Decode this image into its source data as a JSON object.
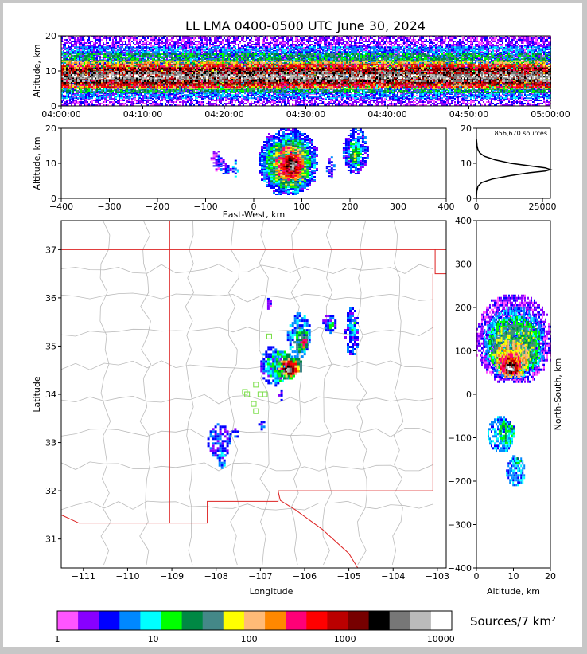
{
  "title": "LL LMA 0400-0500 UTC June 30, 2024",
  "colors": {
    "colorbar": [
      "#ff55ff",
      "#8800ff",
      "#0000ff",
      "#0088ff",
      "#00ffff",
      "#00ff00",
      "#008844",
      "#448888",
      "#ffff00",
      "#ffbb77",
      "#ff8800",
      "#ff0077",
      "#ff0000",
      "#bb0000",
      "#770000",
      "#000000",
      "#777777",
      "#bbbbbb",
      "#ffffff"
    ],
    "state_border": "#dd2222",
    "county_lines": "#bbbbbb",
    "grid": "#dddddd",
    "profile_line": "#000000",
    "site_markers": "#77dd44"
  },
  "chart_data": [
    {
      "id": "time_height",
      "type": "scatter",
      "xlabel": "",
      "ylabel": "Altitude, km",
      "x_ticks": [
        "04:00:00",
        "04:10:00",
        "04:20:00",
        "04:30:00",
        "04:40:00",
        "04:50:00",
        "05:00:00"
      ],
      "y_ticks": [
        "0",
        "10",
        "20"
      ],
      "xlim": [
        "04:00:00",
        "05:00:00"
      ],
      "ylim": [
        0,
        20
      ],
      "layers": [
        {
          "alt_min": 0,
          "alt_max": 20,
          "density": 1
        },
        {
          "alt_min": 2,
          "alt_max": 17,
          "density": 3
        },
        {
          "alt_min": 4,
          "alt_max": 15,
          "density": 6
        },
        {
          "alt_min": 5,
          "alt_max": 13,
          "density": 9
        },
        {
          "alt_min": 5.5,
          "alt_max": 12,
          "density": 12
        },
        {
          "alt_min": 6,
          "alt_max": 11,
          "density": 14
        },
        {
          "alt_min": 7,
          "alt_max": 10,
          "density": 16
        },
        {
          "alt_min": 8,
          "alt_max": 9,
          "density": 17
        }
      ]
    },
    {
      "id": "ew_alt",
      "type": "heatmap",
      "xlabel": "East-West, km",
      "ylabel": "Altitude, km",
      "x_ticks": [
        "−400",
        "−300",
        "−200",
        "−100",
        "0",
        "100",
        "200",
        "300",
        "400"
      ],
      "y_ticks": [
        "0",
        "10",
        "20"
      ],
      "xlim": [
        -400,
        400
      ],
      "ylim": [
        0,
        20
      ],
      "cells": [
        [
          -90,
          -70,
          8,
          14,
          1
        ],
        [
          -80,
          -65,
          9,
          13,
          2
        ],
        [
          -70,
          -50,
          7,
          10,
          2
        ],
        [
          -45,
          -35,
          6,
          11,
          3
        ],
        [
          10,
          130,
          1,
          20,
          2
        ],
        [
          15,
          125,
          2,
          18,
          3
        ],
        [
          25,
          115,
          3,
          17,
          5
        ],
        [
          35,
          110,
          4,
          16,
          7
        ],
        [
          45,
          100,
          5,
          15,
          10
        ],
        [
          55,
          95,
          6,
          13,
          12
        ],
        [
          62,
          90,
          7,
          12,
          14
        ],
        [
          70,
          85,
          8,
          11,
          16
        ],
        [
          74,
          82,
          8.5,
          10.5,
          17
        ],
        [
          77,
          80,
          9,
          10,
          18
        ],
        [
          150,
          165,
          6,
          12,
          2
        ],
        [
          185,
          235,
          7,
          20,
          2
        ],
        [
          195,
          220,
          9,
          17,
          4
        ],
        [
          200,
          215,
          10,
          15,
          6
        ],
        [
          203,
          212,
          11,
          13,
          8
        ]
      ]
    },
    {
      "id": "alt_profile",
      "type": "line",
      "xlabel": "",
      "ylabel": "",
      "x_ticks": [
        "0",
        "25000"
      ],
      "y_ticks": [
        "0",
        "10",
        "20"
      ],
      "xlim": [
        0,
        28000
      ],
      "ylim": [
        0,
        20
      ],
      "annotation": "856,670 sources",
      "x": [
        0,
        120,
        600,
        2000,
        6000,
        13000,
        20000,
        26000,
        28000,
        26000,
        20000,
        13000,
        7000,
        3000,
        1200,
        500,
        250,
        120,
        0
      ],
      "y": [
        0,
        2,
        3.5,
        4.5,
        5.5,
        6.5,
        7.3,
        7.8,
        8.2,
        8.7,
        9.3,
        10,
        11,
        12,
        13,
        14,
        15,
        16,
        17
      ]
    },
    {
      "id": "plan_view",
      "type": "heatmap",
      "xlabel": "Longitude",
      "ylabel": "Latitude",
      "x_ticks": [
        "−111",
        "−110",
        "−109",
        "−108",
        "−107",
        "−106",
        "−105",
        "−104",
        "−103"
      ],
      "y_ticks": [
        "31",
        "32",
        "33",
        "34",
        "35",
        "36",
        "37"
      ],
      "xlim": [
        -111.5,
        -102.8
      ],
      "ylim": [
        30.4,
        37.6
      ],
      "cells": [
        [
          -107,
          -106.5,
          34.2,
          35,
          2
        ],
        [
          -106.9,
          -106.2,
          34.3,
          34.9,
          4
        ],
        [
          -106.7,
          -106.1,
          34.35,
          34.85,
          6
        ],
        [
          -106.6,
          -106.15,
          34.4,
          34.75,
          9
        ],
        [
          -106.55,
          -106.2,
          34.42,
          34.7,
          12
        ],
        [
          -106.5,
          -106.25,
          34.44,
          34.65,
          14
        ],
        [
          -106.45,
          -106.3,
          34.47,
          34.6,
          16
        ],
        [
          -106.42,
          -106.32,
          34.5,
          34.58,
          17
        ],
        [
          -106.4,
          -105.9,
          34.8,
          35.7,
          3
        ],
        [
          -106.25,
          -105.95,
          34.9,
          35.4,
          6
        ],
        [
          -106.1,
          -105.95,
          35,
          35.2,
          11
        ],
        [
          -105.6,
          -105.3,
          35.3,
          35.7,
          2
        ],
        [
          -105.5,
          -105.35,
          35.4,
          35.6,
          4
        ],
        [
          -105.1,
          -104.8,
          34.8,
          35.8,
          2
        ],
        [
          -105,
          -104.85,
          35.2,
          35.6,
          4
        ],
        [
          -108.2,
          -107.7,
          32.7,
          33.4,
          2
        ],
        [
          -108,
          -107.8,
          32.5,
          32.8,
          3
        ],
        [
          -107.7,
          -107.5,
          33.1,
          33.3,
          2
        ],
        [
          -107.05,
          -106.9,
          33.3,
          33.5,
          2
        ],
        [
          -106.6,
          -106.5,
          33.9,
          34.1,
          2
        ],
        [
          -106.9,
          -106.75,
          35.8,
          36.0,
          1
        ]
      ],
      "sites": [
        [
          -106.8,
          35.2
        ],
        [
          -107.1,
          34.2
        ],
        [
          -107.3,
          34.0
        ],
        [
          -107.0,
          34.0
        ],
        [
          -107.15,
          33.8
        ],
        [
          -107.1,
          33.65
        ],
        [
          -106.9,
          34.0
        ],
        [
          -107.35,
          34.05
        ]
      ]
    },
    {
      "id": "ns_alt",
      "type": "heatmap",
      "xlabel": "Altitude, km",
      "ylabel": "North-South, km",
      "x_ticks": [
        "0",
        "10",
        "20"
      ],
      "y_ticks": [
        "−400",
        "−300",
        "−200",
        "−100",
        "0",
        "100",
        "200",
        "300",
        "400"
      ],
      "xlim": [
        0,
        20
      ],
      "ylim": [
        -400,
        400
      ],
      "cells": [
        [
          0,
          20,
          30,
          230,
          1
        ],
        [
          2,
          18,
          40,
          200,
          3
        ],
        [
          3,
          17,
          50,
          180,
          5
        ],
        [
          4,
          16,
          60,
          160,
          7
        ],
        [
          5,
          14,
          40,
          125,
          9
        ],
        [
          6,
          12,
          45,
          100,
          11
        ],
        [
          7,
          11,
          48,
          85,
          13
        ],
        [
          7.5,
          10.5,
          52,
          75,
          15
        ],
        [
          8,
          10,
          55,
          70,
          17
        ],
        [
          8.5,
          9.5,
          58,
          66,
          18
        ],
        [
          3,
          10,
          -130,
          -50,
          3
        ],
        [
          6,
          10,
          -115,
          -60,
          5
        ],
        [
          8,
          13,
          -210,
          -140,
          3
        ],
        [
          10,
          12,
          -160,
          -145,
          5
        ]
      ]
    },
    {
      "id": "colorbar",
      "type": "heatmap",
      "xlabel": "Sources/7 km²",
      "ylabel": "",
      "x_ticks": [
        "1",
        "10",
        "100",
        "1000",
        "10000"
      ],
      "xlim": [
        1,
        13000
      ]
    }
  ]
}
